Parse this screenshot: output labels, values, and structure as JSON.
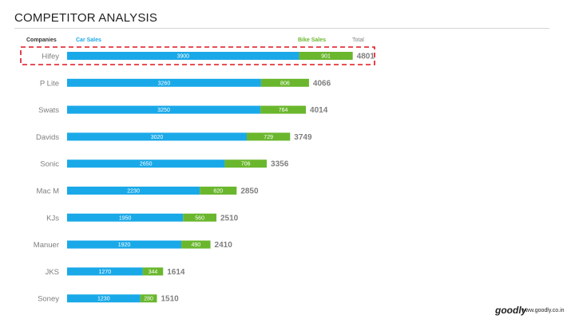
{
  "page": {
    "title": "COMPETITOR ANALYSIS",
    "footer_logo": "goodly",
    "footer_url": "www.goodly.co.in"
  },
  "colors": {
    "car": "#1aa9e8",
    "bike": "#6ab72e",
    "highlight": "#e0141e",
    "label": "#7f7f7f"
  },
  "chart_data": {
    "type": "bar",
    "orientation": "horizontal",
    "stacked": true,
    "header_labels": {
      "companies": "Companies",
      "car": "Car Sales",
      "bike": "Bike Sales",
      "total": "Total"
    },
    "categories": [
      "Hifey",
      "P Lite",
      "Swats",
      "Davids",
      "Sonic",
      "Mac M",
      "KJs",
      "Manuer",
      "JKS",
      "Soney"
    ],
    "series": [
      {
        "name": "Car Sales",
        "values": [
          3900,
          3260,
          3250,
          3020,
          2650,
          2230,
          1950,
          1920,
          1270,
          1230
        ]
      },
      {
        "name": "Bike Sales",
        "values": [
          901,
          806,
          764,
          729,
          706,
          620,
          560,
          490,
          344,
          280
        ]
      }
    ],
    "totals": [
      4801,
      4066,
      4014,
      3749,
      3356,
      2850,
      2510,
      2410,
      1614,
      1510
    ],
    "highlighted_category": "Hifey",
    "grid": false,
    "legend": "top"
  }
}
